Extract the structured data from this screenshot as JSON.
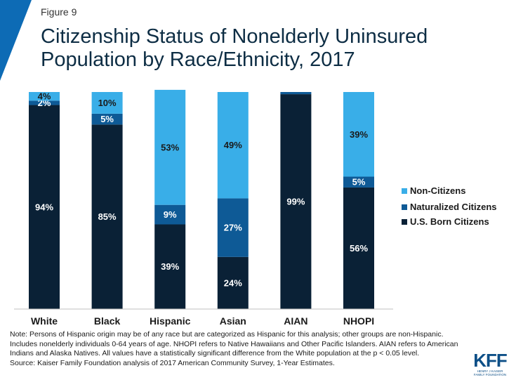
{
  "figure_label": "Figure 9",
  "title": "Citizenship Status of Nonelderly Uninsured Population by Race/Ethnicity, 2017",
  "colors": {
    "us_born": "#0a2136",
    "naturalized": "#0e5a96",
    "non_citizens": "#39aee8",
    "accent": "#0d6bb5"
  },
  "chart_data": {
    "type": "bar",
    "stacked": true,
    "categories": [
      "White",
      "Black",
      "Hispanic",
      "Asian",
      "AIAN",
      "NHOPI"
    ],
    "series": [
      {
        "name": "U.S. Born Citizens",
        "color": "#0a2136",
        "label_color": "#ffffff",
        "values": [
          94,
          85,
          39,
          24,
          99,
          56
        ],
        "labels": [
          "94%",
          "85%",
          "39%",
          "24%",
          "99%",
          "56%"
        ]
      },
      {
        "name": "Naturalized Citizens",
        "color": "#0e5a96",
        "label_color": "#ffffff",
        "values": [
          2,
          5,
          9,
          27,
          1,
          5
        ],
        "labels": [
          "2%",
          "5%",
          "9%",
          "27%",
          "",
          "5%"
        ]
      },
      {
        "name": "Non-Citizens",
        "color": "#39aee8",
        "label_color": "#1a1a1a",
        "values": [
          4,
          10,
          53,
          49,
          0,
          39
        ],
        "labels": [
          "4%",
          "10%",
          "53%",
          "49%",
          "",
          "39%"
        ]
      }
    ],
    "ylim": [
      0,
      100
    ],
    "grid": false,
    "legend_position": "right"
  },
  "legend": [
    {
      "label": "Non-Citizens",
      "color": "#39aee8"
    },
    {
      "label": "Naturalized Citizens",
      "color": "#0e5a96"
    },
    {
      "label": "U.S. Born Citizens",
      "color": "#0a2136"
    }
  ],
  "note": "Note: Persons of Hispanic origin may be of any race but are categorized as Hispanic for this analysis; other groups are non-Hispanic. Includes nonelderly individuals 0-64 years of age. NHOPI refers to Native Hawaiians and Other Pacific Islanders. AIAN refers to American Indians and Alaska Natives. All values have a statistically significant difference from the White population at the p < 0.05 level.",
  "source": "Source: Kaiser Family Foundation analysis of 2017 American Community Survey, 1-Year Estimates.",
  "logo": {
    "mark": "KFF",
    "sub_line1": "HENRY J KAISER",
    "sub_line2": "FAMILY FOUNDATION"
  }
}
